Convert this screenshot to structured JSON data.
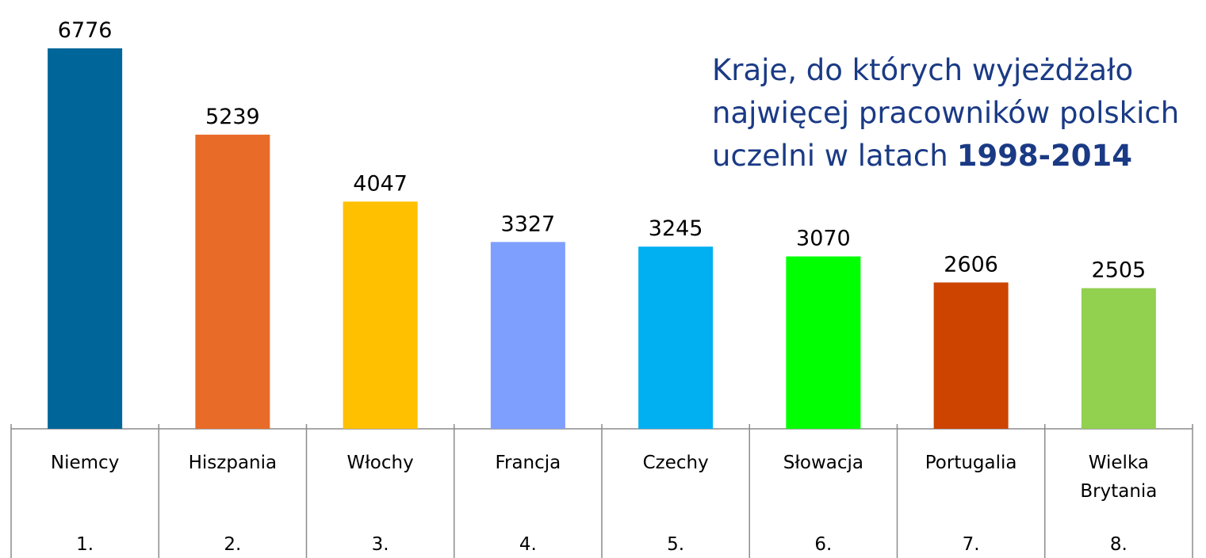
{
  "chart_data": {
    "type": "bar",
    "title_lines": [
      "Kraje, do których wyjeżdżało",
      "najwięcej pracowników polskich",
      "uczelni w latach"
    ],
    "title_highlight": "1998-2014",
    "categories": [
      "Niemcy",
      "Hiszpania",
      "Włochy",
      "Francja",
      "Czechy",
      "Słowacja",
      "Portugalia",
      "Wielka Brytania"
    ],
    "ranks": [
      "1.",
      "2.",
      "3.",
      "4.",
      "5.",
      "6.",
      "7.",
      "8."
    ],
    "values": [
      6776,
      5239,
      4047,
      3327,
      3245,
      3070,
      2606,
      2505
    ],
    "colors": [
      "#006699",
      "#e86b28",
      "#ffc000",
      "#7f9fff",
      "#00b0f0",
      "#00ff00",
      "#cc4400",
      "#92d050"
    ]
  }
}
